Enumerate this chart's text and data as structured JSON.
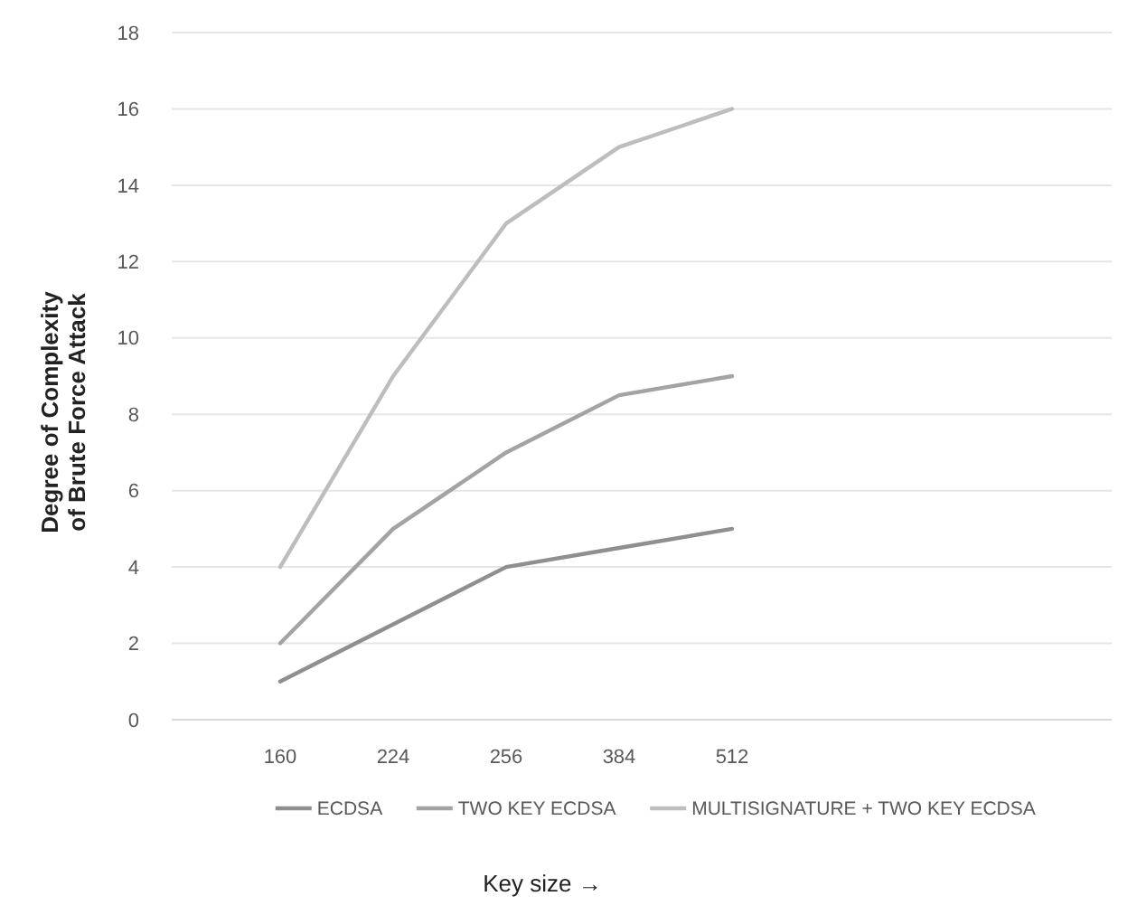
{
  "chart_data": {
    "type": "line",
    "xlabel": "Key size →",
    "ylabel": "Degree of Complexity\nof Brute Force Attack",
    "categories": [
      "160",
      "224",
      "256",
      "384",
      "512",
      null,
      null,
      null
    ],
    "series": [
      {
        "name": "ECDSA",
        "color": "#8f8f8f",
        "values": [
          1,
          2.5,
          4,
          4.5,
          5,
          null,
          null,
          null
        ]
      },
      {
        "name": "TWO KEY ECDSA",
        "color": "#a3a3a3",
        "values": [
          2,
          5,
          7,
          8.5,
          9,
          null,
          null,
          null
        ]
      },
      {
        "name": "MULTISIGNATURE + TWO KEY ECDSA",
        "color": "#bdbdbd",
        "values": [
          4,
          9,
          13,
          15,
          16,
          null,
          null,
          null
        ]
      }
    ],
    "ylim": [
      0,
      18
    ],
    "yticks": [
      0,
      2,
      4,
      6,
      8,
      10,
      12,
      14,
      16,
      18
    ],
    "grid": "y",
    "legend": "bottom",
    "marker": "none",
    "line_style": "solid"
  }
}
